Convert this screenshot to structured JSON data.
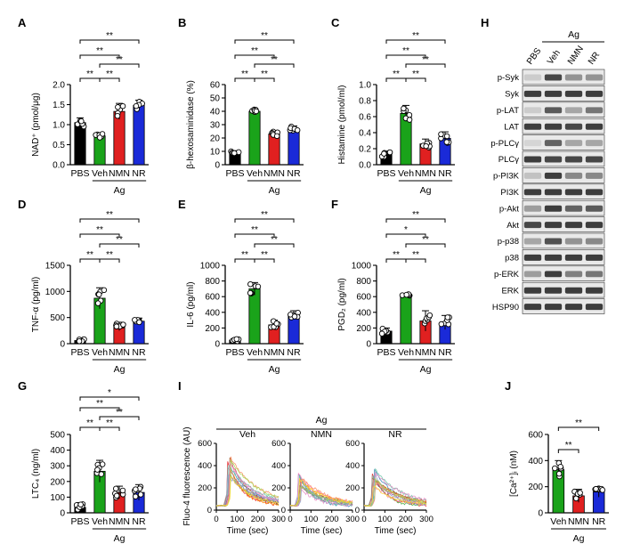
{
  "colors": {
    "PBS": "#000000",
    "Veh": "#1aa31a",
    "NMN": "#e02020",
    "NR": "#1a2ad8",
    "dot_fill": "#ffffff",
    "blot_band": "#2a2a2a",
    "blot_bg": "#e9e9e9"
  },
  "chart_data": [
    {
      "panel": "A",
      "type": "bar",
      "categories": [
        "PBS",
        "Veh",
        "NMN",
        "NR"
      ],
      "values": [
        1.05,
        0.72,
        1.33,
        1.48
      ],
      "errors": [
        0.12,
        0.07,
        0.2,
        0.13
      ],
      "ylabel": "NAD⁺ (pmol/μg)",
      "ylim": [
        0,
        2.0
      ],
      "yticks": [
        "0.0",
        "0.5",
        "1.0",
        "1.5",
        "2.0"
      ],
      "group_label": "Ag",
      "significance": [
        {
          "pair": [
            "PBS",
            "Veh"
          ],
          "label": "**"
        },
        {
          "pair": [
            "Veh",
            "NMN"
          ],
          "label": "**"
        },
        {
          "pair": [
            "PBS",
            "NMN"
          ],
          "label": "**"
        },
        {
          "pair": [
            "Veh",
            "NR"
          ],
          "label": "**"
        },
        {
          "pair": [
            "PBS",
            "NR"
          ],
          "label": "**"
        }
      ]
    },
    {
      "panel": "B",
      "type": "bar",
      "categories": [
        "PBS",
        "Veh",
        "NMN",
        "NR"
      ],
      "values": [
        9,
        40,
        23,
        27
      ],
      "errors": [
        1.5,
        2,
        2.5,
        2
      ],
      "ylabel": "β-hexosaminidase (%)",
      "ylim": [
        0,
        60
      ],
      "yticks": [
        "0",
        "10",
        "20",
        "30",
        "40",
        "50",
        "60"
      ],
      "group_label": "Ag",
      "significance": [
        {
          "pair": [
            "PBS",
            "Veh"
          ],
          "label": "**"
        },
        {
          "pair": [
            "Veh",
            "NMN"
          ],
          "label": "**"
        },
        {
          "pair": [
            "PBS",
            "NMN"
          ],
          "label": "**"
        },
        {
          "pair": [
            "Veh",
            "NR"
          ],
          "label": "**"
        },
        {
          "pair": [
            "PBS",
            "NR"
          ],
          "label": "**"
        }
      ]
    },
    {
      "panel": "C",
      "type": "bar",
      "categories": [
        "PBS",
        "Veh",
        "NMN",
        "NR"
      ],
      "values": [
        0.13,
        0.64,
        0.26,
        0.33
      ],
      "errors": [
        0.04,
        0.1,
        0.06,
        0.08
      ],
      "ylabel": "Histamine (pmol/ml)",
      "ylim": [
        0,
        1.0
      ],
      "yticks": [
        "0.0",
        "0.2",
        "0.4",
        "0.6",
        "0.8",
        "1.0"
      ],
      "group_label": "Ag",
      "significance": [
        {
          "pair": [
            "PBS",
            "Veh"
          ],
          "label": "**"
        },
        {
          "pair": [
            "Veh",
            "NMN"
          ],
          "label": "**"
        },
        {
          "pair": [
            "PBS",
            "NMN"
          ],
          "label": "**"
        },
        {
          "pair": [
            "Veh",
            "NR"
          ],
          "label": "**"
        },
        {
          "pair": [
            "PBS",
            "NR"
          ],
          "label": "**"
        }
      ]
    },
    {
      "panel": "D",
      "type": "bar",
      "categories": [
        "PBS",
        "Veh",
        "NMN",
        "NR"
      ],
      "values": [
        60,
        870,
        330,
        430
      ],
      "errors": [
        30,
        200,
        80,
        60
      ],
      "ylabel": "TNF-α (pg/ml)",
      "ylim": [
        0,
        1500
      ],
      "yticks": [
        "0",
        "500",
        "1000",
        "1500"
      ],
      "group_label": "Ag",
      "significance": [
        {
          "pair": [
            "PBS",
            "Veh"
          ],
          "label": "**"
        },
        {
          "pair": [
            "Veh",
            "NMN"
          ],
          "label": "**"
        },
        {
          "pair": [
            "PBS",
            "NMN"
          ],
          "label": "**"
        },
        {
          "pair": [
            "Veh",
            "NR"
          ],
          "label": "**"
        },
        {
          "pair": [
            "PBS",
            "NR"
          ],
          "label": "**"
        }
      ]
    },
    {
      "panel": "E",
      "type": "bar",
      "categories": [
        "PBS",
        "Veh",
        "NMN",
        "NR"
      ],
      "values": [
        45,
        700,
        240,
        370
      ],
      "errors": [
        20,
        80,
        60,
        50
      ],
      "ylabel": "IL-6 (pg/ml)",
      "ylim": [
        0,
        1000
      ],
      "yticks": [
        "0",
        "200",
        "400",
        "600",
        "800",
        "1000"
      ],
      "group_label": "Ag",
      "significance": [
        {
          "pair": [
            "PBS",
            "Veh"
          ],
          "label": "**"
        },
        {
          "pair": [
            "Veh",
            "NMN"
          ],
          "label": "**"
        },
        {
          "pair": [
            "PBS",
            "NMN"
          ],
          "label": "**"
        },
        {
          "pair": [
            "Veh",
            "NR"
          ],
          "label": "**"
        },
        {
          "pair": [
            "PBS",
            "NR"
          ],
          "label": "**"
        }
      ]
    },
    {
      "panel": "F",
      "type": "bar",
      "categories": [
        "PBS",
        "Veh",
        "NMN",
        "NR"
      ],
      "values": [
        160,
        620,
        290,
        270
      ],
      "errors": [
        40,
        15,
        130,
        90
      ],
      "ylabel": "PGD₂ (pg/ml)",
      "ylim": [
        0,
        1000
      ],
      "yticks": [
        "0",
        "200",
        "400",
        "600",
        "800",
        "1000"
      ],
      "group_label": "Ag",
      "significance": [
        {
          "pair": [
            "PBS",
            "Veh"
          ],
          "label": "**"
        },
        {
          "pair": [
            "Veh",
            "NMN"
          ],
          "label": "**"
        },
        {
          "pair": [
            "PBS",
            "NMN"
          ],
          "label": "*"
        },
        {
          "pair": [
            "Veh",
            "NR"
          ],
          "label": "**"
        },
        {
          "pair": [
            "PBS",
            "NR"
          ],
          "label": "**"
        }
      ]
    },
    {
      "panel": "G",
      "type": "bar",
      "categories": [
        "PBS",
        "Veh",
        "NMN",
        "NR"
      ],
      "values": [
        35,
        265,
        130,
        130
      ],
      "errors": [
        30,
        70,
        40,
        50
      ],
      "ylabel": "LTC₄ (ng/ml)",
      "ylim": [
        0,
        500
      ],
      "yticks": [
        "0",
        "100",
        "200",
        "300",
        "400",
        "500"
      ],
      "group_label": "Ag",
      "significance": [
        {
          "pair": [
            "PBS",
            "Veh"
          ],
          "label": "**"
        },
        {
          "pair": [
            "Veh",
            "NMN"
          ],
          "label": "**"
        },
        {
          "pair": [
            "PBS",
            "NMN"
          ],
          "label": "**"
        },
        {
          "pair": [
            "Veh",
            "NR"
          ],
          "label": "**"
        },
        {
          "pair": [
            "PBS",
            "NR"
          ],
          "label": "*"
        }
      ]
    },
    {
      "panel": "J",
      "type": "bar",
      "categories": [
        "Veh",
        "NMN",
        "NR"
      ],
      "values": [
        330,
        130,
        160
      ],
      "errors": [
        70,
        50,
        40
      ],
      "ylabel": "[Ca²⁺]ᵢ (nM)",
      "ylim": [
        0,
        600
      ],
      "yticks": [
        "0",
        "200",
        "400",
        "600"
      ],
      "group_label": "Ag",
      "significance": [
        {
          "pair": [
            "Veh",
            "NMN"
          ],
          "label": "**"
        },
        {
          "pair": [
            "Veh",
            "NR"
          ],
          "label": "**"
        }
      ]
    },
    {
      "panel": "I",
      "type": "line",
      "group_label": "Ag",
      "ylabel": "Fluo-4 fluorescence (AU)",
      "xlabel": "Time (sec)",
      "xlim": [
        0,
        300
      ],
      "ylim": [
        0,
        600
      ],
      "xticks": [
        "0",
        "100",
        "200",
        "300"
      ],
      "yticks": [
        "0",
        "200",
        "400",
        "600"
      ],
      "subplots": [
        {
          "title": "Veh",
          "n_traces": 14,
          "baseline": 40,
          "peak": 400,
          "peak_time": 60
        },
        {
          "title": "NMN",
          "n_traces": 14,
          "baseline": 40,
          "peak": 250,
          "peak_time": 45
        },
        {
          "title": "NR",
          "n_traces": 14,
          "baseline": 40,
          "peak": 300,
          "peak_time": 45
        }
      ],
      "trace_colors": [
        "#e41a1c",
        "#377eb8",
        "#4daf4a",
        "#984ea3",
        "#ff7f00",
        "#a65628",
        "#f781bf",
        "#999999",
        "#66c2a5",
        "#fc8d62",
        "#8da0cb",
        "#e78ac3",
        "#a6d854",
        "#ffd92f"
      ]
    },
    {
      "panel": "H",
      "type": "table",
      "group_label": "Ag",
      "lanes": [
        "PBS",
        "Veh",
        "NMN",
        "NR"
      ],
      "rows": [
        "p-Syk",
        "Syk",
        "p-LAT",
        "LAT",
        "p-PLCγ",
        "PLCγ",
        "p-PI3K",
        "PI3K",
        "p-Akt",
        "Akt",
        "p-p38",
        "p38",
        "p-ERK",
        "ERK",
        "HSP90"
      ],
      "intensity": [
        [
          0.15,
          0.85,
          0.45,
          0.45
        ],
        [
          0.9,
          0.9,
          0.9,
          0.9
        ],
        [
          0.15,
          0.75,
          0.35,
          0.6
        ],
        [
          0.9,
          0.9,
          0.85,
          0.9
        ],
        [
          0.1,
          0.7,
          0.35,
          0.35
        ],
        [
          0.9,
          0.85,
          0.85,
          0.85
        ],
        [
          0.2,
          0.9,
          0.5,
          0.5
        ],
        [
          0.9,
          0.9,
          0.9,
          0.9
        ],
        [
          0.4,
          0.9,
          0.7,
          0.75
        ],
        [
          0.85,
          0.9,
          0.9,
          0.9
        ],
        [
          0.35,
          0.8,
          0.45,
          0.5
        ],
        [
          0.9,
          0.9,
          0.9,
          0.9
        ],
        [
          0.4,
          0.9,
          0.55,
          0.6
        ],
        [
          0.9,
          0.9,
          0.9,
          0.9
        ],
        [
          0.9,
          0.9,
          0.9,
          0.9
        ]
      ]
    }
  ]
}
